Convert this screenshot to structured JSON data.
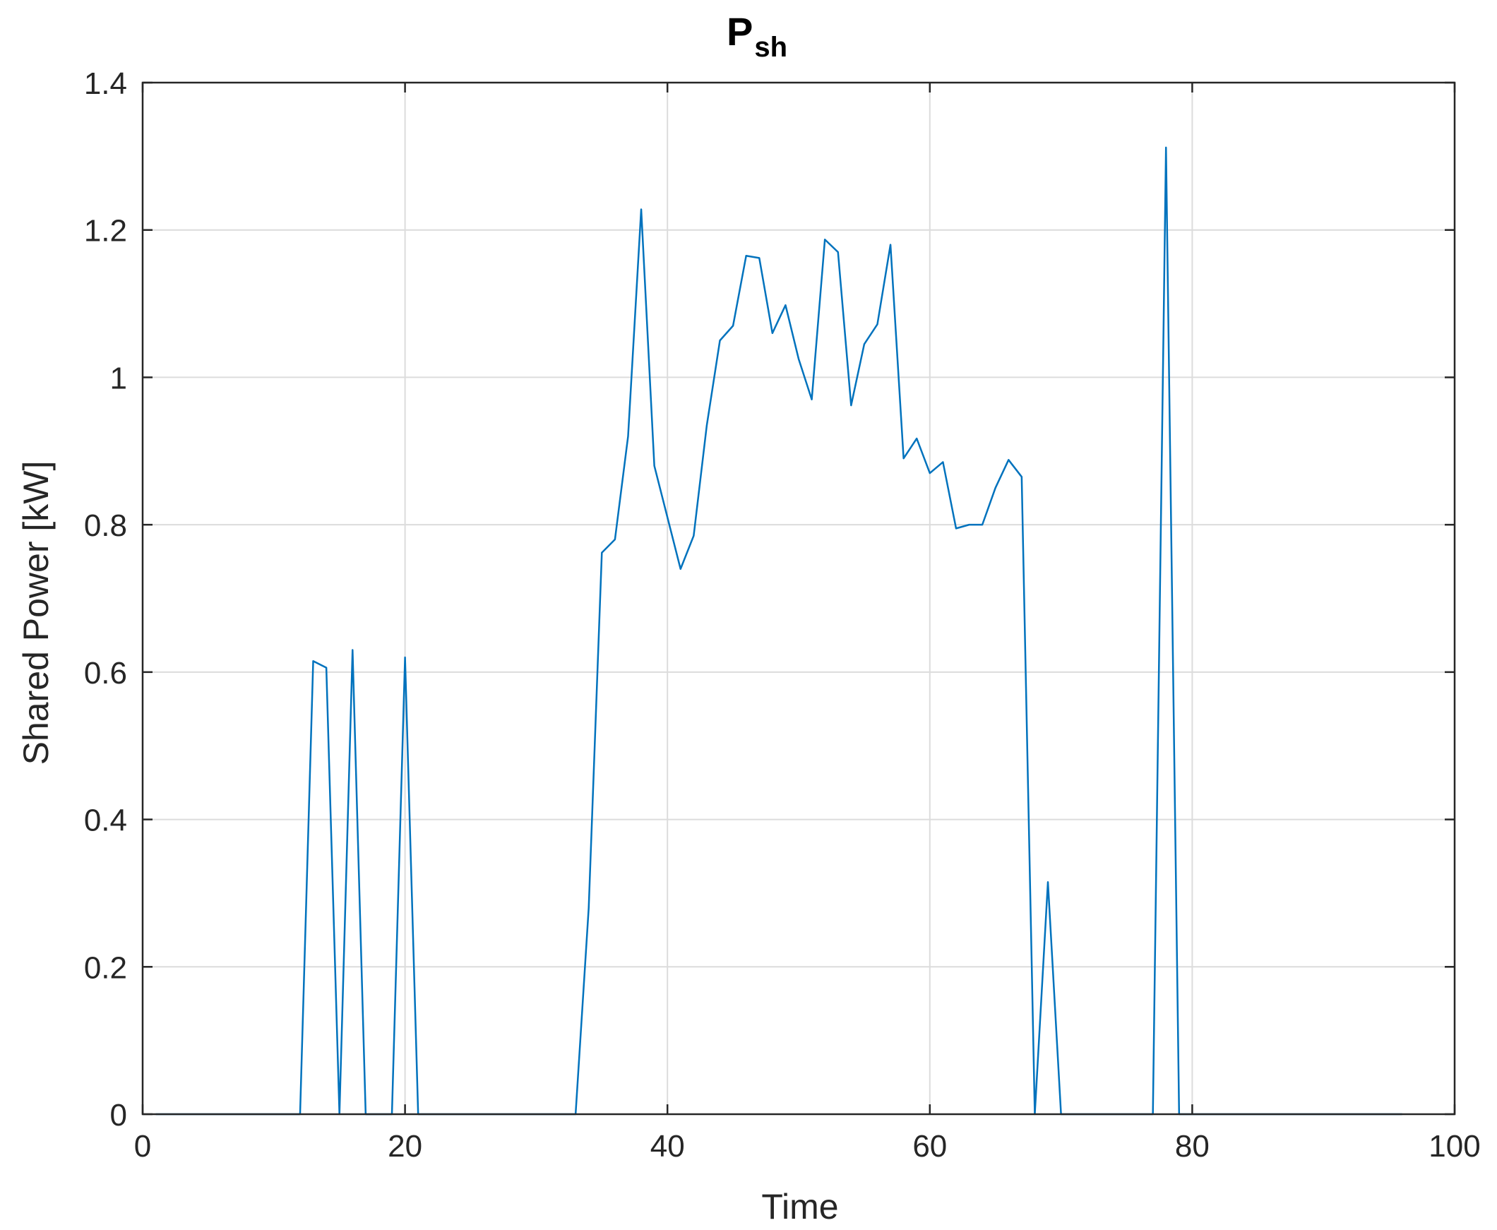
{
  "chart_data": {
    "type": "line",
    "title": "P",
    "title_subscript": "sh",
    "xlabel": "Time",
    "ylabel": "Shared Power [kW]",
    "xlim": [
      0,
      100
    ],
    "ylim": [
      0,
      1.4
    ],
    "x_ticks": [
      0,
      20,
      40,
      60,
      80,
      100
    ],
    "y_ticks": [
      0,
      0.2,
      0.4,
      0.6,
      0.8,
      1,
      1.2,
      1.4
    ],
    "x_tick_labels": [
      "0",
      "20",
      "40",
      "60",
      "80",
      "100"
    ],
    "y_tick_labels": [
      "0",
      "0.2",
      "0.4",
      "0.6",
      "0.8",
      "1",
      "1.2",
      "1.4"
    ],
    "grid": true,
    "box": true,
    "colors": {
      "series": "#0072bd",
      "axis": "#262626",
      "grid": "#dcdcdc"
    },
    "series": [
      {
        "x": [
          1,
          2,
          3,
          4,
          5,
          6,
          7,
          8,
          9,
          10,
          11,
          12,
          13,
          14,
          15,
          16,
          17,
          18,
          19,
          20,
          21,
          22,
          23,
          24,
          25,
          26,
          27,
          28,
          29,
          30,
          31,
          32,
          33,
          34,
          35,
          36,
          37,
          38,
          39,
          40,
          41,
          42,
          43,
          44,
          45,
          46,
          47,
          48,
          49,
          50,
          51,
          52,
          53,
          54,
          55,
          56,
          57,
          58,
          59,
          60,
          61,
          62,
          63,
          64,
          65,
          66,
          67,
          68,
          69,
          70,
          71,
          72,
          73,
          74,
          75,
          76,
          77,
          78,
          79,
          80,
          81,
          82,
          83,
          84,
          85,
          86,
          87,
          88,
          89,
          90,
          91,
          92,
          93,
          94,
          95,
          96
        ],
        "values": [
          0,
          0,
          0,
          0,
          0,
          0,
          0,
          0,
          0,
          0,
          0,
          0,
          0.615,
          0.606,
          0,
          0.63,
          0,
          0,
          0,
          0.62,
          0,
          0,
          0,
          0,
          0,
          0,
          0,
          0,
          0,
          0,
          0,
          0,
          0,
          0.28,
          0.762,
          0.78,
          0.92,
          1.228,
          0.88,
          0.81,
          0.74,
          0.785,
          0.935,
          1.05,
          1.07,
          1.165,
          1.162,
          1.06,
          1.098,
          1.025,
          0.97,
          1.187,
          1.17,
          0.962,
          1.045,
          1.072,
          1.18,
          0.89,
          0.917,
          0.87,
          0.885,
          0.795,
          0.8,
          0.8,
          0.85,
          0.888,
          0.865,
          0,
          0.315,
          0,
          0,
          0,
          0,
          0,
          0,
          0,
          0,
          1.312,
          0,
          0,
          0,
          0,
          0,
          0,
          0,
          0,
          0,
          0,
          0,
          0,
          0,
          0,
          0,
          0,
          0,
          0
        ]
      }
    ]
  }
}
